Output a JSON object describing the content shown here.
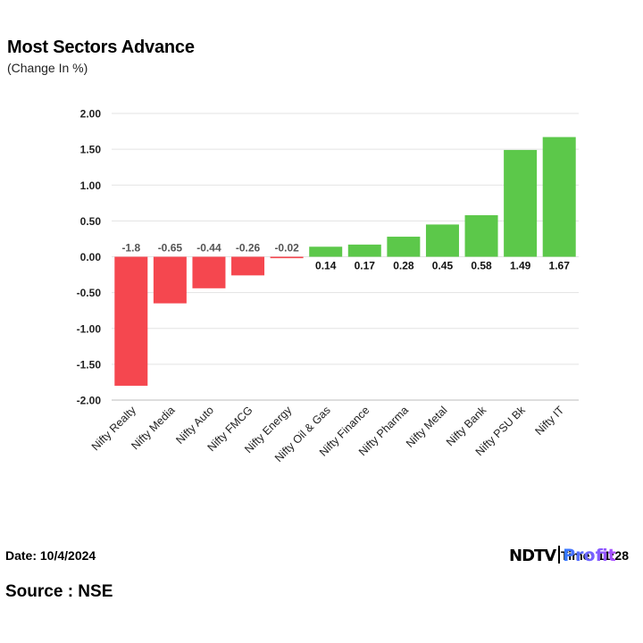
{
  "header": {
    "title": "Most Sectors Advance",
    "subtitle": "(Change In %)"
  },
  "footer": {
    "date": "Date: 10/4/2024",
    "time": "Time: 11:28",
    "source": "Source : NSE",
    "logo_left": "NDTV",
    "logo_right": "Profit"
  },
  "colors": {
    "negative": "#f5474f",
    "positive": "#5cc84a",
    "grid": "#e3e3e3",
    "axis": "#bdbdbd"
  },
  "chart_data": {
    "type": "bar",
    "categories": [
      "Nifty Realty",
      "Nifty Media",
      "Nifty Auto",
      "Nifty FMCG",
      "Nifty Energy",
      "Nifty Oil & Gas",
      "Nifty Finance",
      "Nifty Pharma",
      "Nifty Metal",
      "Nifty Bank",
      "Nifty PSU Bk",
      "Nifty IT"
    ],
    "values": [
      -1.8,
      -0.65,
      -0.44,
      -0.26,
      -0.02,
      0.14,
      0.17,
      0.28,
      0.45,
      0.58,
      1.49,
      1.67
    ],
    "data_labels": [
      "-1.8",
      "-0.65",
      "-0.44",
      "-0.26",
      "-0.02",
      "0.14",
      "0.17",
      "0.28",
      "0.45",
      "0.58",
      "1.49",
      "1.67"
    ],
    "ylim": [
      -2.0,
      2.0
    ],
    "yticks": [
      "2.00",
      "1.50",
      "1.00",
      "0.50",
      "0.00",
      "-0.50",
      "-1.00",
      "-1.50",
      "-2.00"
    ],
    "ytick_values": [
      2.0,
      1.5,
      1.0,
      0.5,
      0.0,
      -0.5,
      -1.0,
      -1.5,
      -2.0
    ],
    "grid": true,
    "legend": "none"
  }
}
